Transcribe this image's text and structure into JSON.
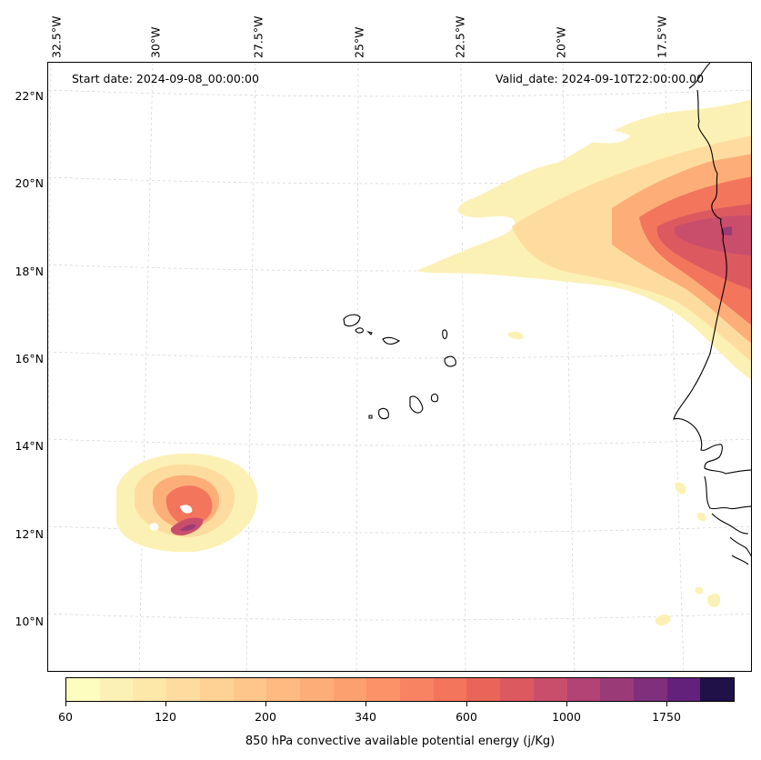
{
  "annotations": {
    "start_date": "Start date: 2024-09-08_00:00:00",
    "valid_date": "Valid_date: 2024-09-10T22:00:00.00"
  },
  "axes": {
    "longitude_labels": [
      "32.5°W",
      "30°W",
      "27.5°W",
      "25°W",
      "22.5°W",
      "20°W",
      "17.5°W"
    ],
    "latitude_labels": [
      "22°N",
      "20°N",
      "18°N",
      "16°N",
      "14°N",
      "12°N",
      "10°N"
    ],
    "grid": true
  },
  "colorbar": {
    "label": "850 hPa convective available potential energy (j/Kg)",
    "tick_labels": [
      "60",
      "120",
      "200",
      "340",
      "600",
      "1000",
      "1750"
    ],
    "colors": [
      "#fcfdbf",
      "#fcf1b4",
      "#fde7a9",
      "#fedc9f",
      "#fed195",
      "#fec68a",
      "#feba80",
      "#fdae78",
      "#fca06f",
      "#fb9268",
      "#f88362",
      "#f3755c",
      "#ea6559",
      "#dc5960",
      "#c94e6b",
      "#b24374",
      "#9a3b78",
      "#7f2f7b",
      "#63217c",
      "#201149"
    ]
  },
  "map": {
    "colors": {
      "level1": "#fcf1b4",
      "level2": "#fedc9f",
      "level3": "#fdae78",
      "level4": "#f3755c",
      "level5": "#dc5960",
      "level6": "#c94e6b",
      "level7": "#9a3b78",
      "coast": "#000000",
      "grid": "#cccccc"
    }
  }
}
